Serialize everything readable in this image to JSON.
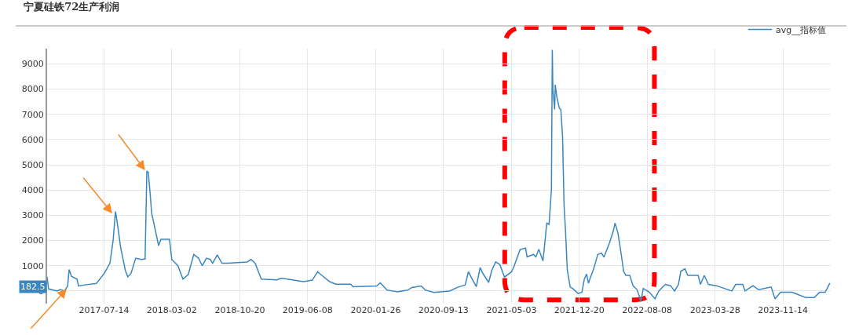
{
  "chart_data": {
    "type": "line",
    "title": "宁夏硅铁72生产利润",
    "x": [
      "2017-01-01",
      "2017-01-06",
      "2017-02-05",
      "2017-02-15",
      "2017-03-01",
      "2017-03-12",
      "2017-03-17",
      "2017-03-25",
      "2017-04-13",
      "2017-04-18",
      "2017-05-15",
      "2017-06-18",
      "2017-07-15",
      "2017-08-03",
      "2017-08-14",
      "2017-08-22",
      "2017-08-27",
      "2017-09-09",
      "2017-09-25",
      "2017-10-03",
      "2017-10-14",
      "2017-10-30",
      "2017-11-18",
      "2017-12-01",
      "2017-12-07",
      "2017-12-12",
      "2017-12-20",
      "2017-12-23",
      "2018-01-05",
      "2018-01-16",
      "2018-01-24",
      "2018-02-22",
      "2018-03-02",
      "2018-03-23",
      "2018-04-09",
      "2018-04-27",
      "2018-05-16",
      "2018-06-01",
      "2018-06-14",
      "2018-06-28",
      "2018-07-11",
      "2018-07-19",
      "2018-08-04",
      "2018-08-20",
      "2018-09-08",
      "2018-11-14",
      "2018-11-27",
      "2018-12-11",
      "2019-01-01",
      "2019-02-23",
      "2019-03-09",
      "2019-03-14",
      "2019-05-25",
      "2019-06-24",
      "2019-07-12",
      "2019-07-20",
      "2019-08-22",
      "2019-09-12",
      "2019-11-02",
      "2019-11-10",
      "2020-01-29",
      "2020-02-11",
      "2020-03-04",
      "2020-04-10",
      "2020-05-15",
      "2020-05-28",
      "2020-06-29",
      "2020-07-13",
      "2020-08-11",
      "2020-10-04",
      "2020-10-30",
      "2020-11-26",
      "2020-12-07",
      "2020-12-20",
      "2021-01-03",
      "2021-01-16",
      "2021-01-26",
      "2021-02-14",
      "2021-02-25",
      "2021-03-10",
      "2021-03-24",
      "2021-04-09",
      "2021-05-03",
      "2021-05-11",
      "2021-06-01",
      "2021-06-20",
      "2021-06-25",
      "2021-07-17",
      "2021-07-25",
      "2021-08-04",
      "2021-08-18",
      "2021-08-26",
      "2021-08-31",
      "2021-09-08",
      "2021-09-16",
      "2021-09-19",
      "2021-09-21",
      "2021-09-27",
      "2021-09-29",
      "2021-10-05",
      "2021-10-13",
      "2021-10-18",
      "2021-10-24",
      "2021-10-29",
      "2021-11-03",
      "2021-11-09",
      "2021-11-19",
      "2021-11-27",
      "2021-12-16",
      "2021-12-29",
      "2022-01-06",
      "2022-01-14",
      "2022-01-20",
      "2022-02-07",
      "2022-02-21",
      "2022-03-06",
      "2022-03-14",
      "2022-04-02",
      "2022-04-15",
      "2022-04-21",
      "2022-05-01",
      "2022-05-12",
      "2022-05-20",
      "2022-05-28",
      "2022-06-10",
      "2022-06-21",
      "2022-07-05",
      "2022-07-18",
      "2022-07-26",
      "2022-08-16",
      "2022-09-04",
      "2022-09-17",
      "2022-10-09",
      "2022-10-27",
      "2022-11-10",
      "2022-11-23",
      "2022-12-01",
      "2022-12-15",
      "2022-12-25",
      "2023-01-29",
      "2023-02-06",
      "2023-02-19",
      "2023-03-05",
      "2023-04-01",
      "2023-05-24",
      "2023-06-06",
      "2023-06-30",
      "2023-07-08",
      "2023-08-04",
      "2023-08-23",
      "2023-10-05",
      "2023-10-18",
      "2023-11-06",
      "2023-12-16",
      "2024-01-30",
      "2024-02-29",
      "2024-03-18",
      "2024-04-06",
      "2024-04-22"
    ],
    "series": [
      {
        "name": "avg__指标值",
        "color": "#3a87c0",
        "values": [
          560,
          80,
          0,
          60,
          0,
          200,
          850,
          580,
          470,
          200,
          250,
          300,
          700,
          1100,
          2000,
          3150,
          2800,
          1700,
          800,
          560,
          700,
          1300,
          1250,
          1270,
          4750,
          4700,
          3600,
          3100,
          2400,
          1800,
          2050,
          2050,
          1250,
          1000,
          470,
          650,
          1450,
          1300,
          1000,
          1300,
          1250,
          1100,
          1430,
          1100,
          1100,
          1150,
          1250,
          1100,
          470,
          440,
          500,
          500,
          370,
          430,
          760,
          680,
          370,
          270,
          270,
          170,
          200,
          320,
          40,
          -30,
          40,
          140,
          200,
          40,
          -60,
          0,
          140,
          240,
          760,
          470,
          170,
          930,
          680,
          340,
          830,
          1150,
          1050,
          550,
          760,
          960,
          1640,
          1700,
          1350,
          1450,
          1350,
          1650,
          1190,
          2070,
          2690,
          2640,
          4030,
          9550,
          7960,
          7190,
          8170,
          7650,
          7240,
          7190,
          6100,
          3410,
          2380,
          830,
          160,
          100,
          -100,
          -50,
          470,
          670,
          310,
          880,
          1450,
          1500,
          1340,
          1910,
          2380,
          2690,
          2280,
          1450,
          780,
          620,
          620,
          210,
          50,
          -410,
          100,
          -50,
          -310,
          0,
          260,
          210,
          0,
          260,
          780,
          880,
          620,
          620,
          260,
          620,
          260,
          210,
          0,
          260,
          260,
          0,
          210,
          50,
          160,
          -310,
          -50,
          -50,
          -260,
          -260,
          -50,
          -50,
          310
        ]
      }
    ],
    "xlim": [
      "2017-01-01",
      "2024-04-25"
    ],
    "xticks": [
      "2017-07-14",
      "2018-03-02",
      "2018-10-20",
      "2019-06-08",
      "2020-01-26",
      "2020-09-13",
      "2021-05-03",
      "2021-12-20",
      "2022-08-08",
      "2023-03-28",
      "2023-11-14"
    ],
    "ylim": [
      -500,
      9600
    ],
    "yticks": [
      0,
      1000,
      2000,
      3000,
      4000,
      5000,
      6000,
      7000,
      8000,
      9000
    ],
    "annotations": [
      {
        "text": "182.5",
        "y": 182.5
      }
    ],
    "grid": true,
    "legend": "top right",
    "marker": "none",
    "line_style": "solid"
  }
}
